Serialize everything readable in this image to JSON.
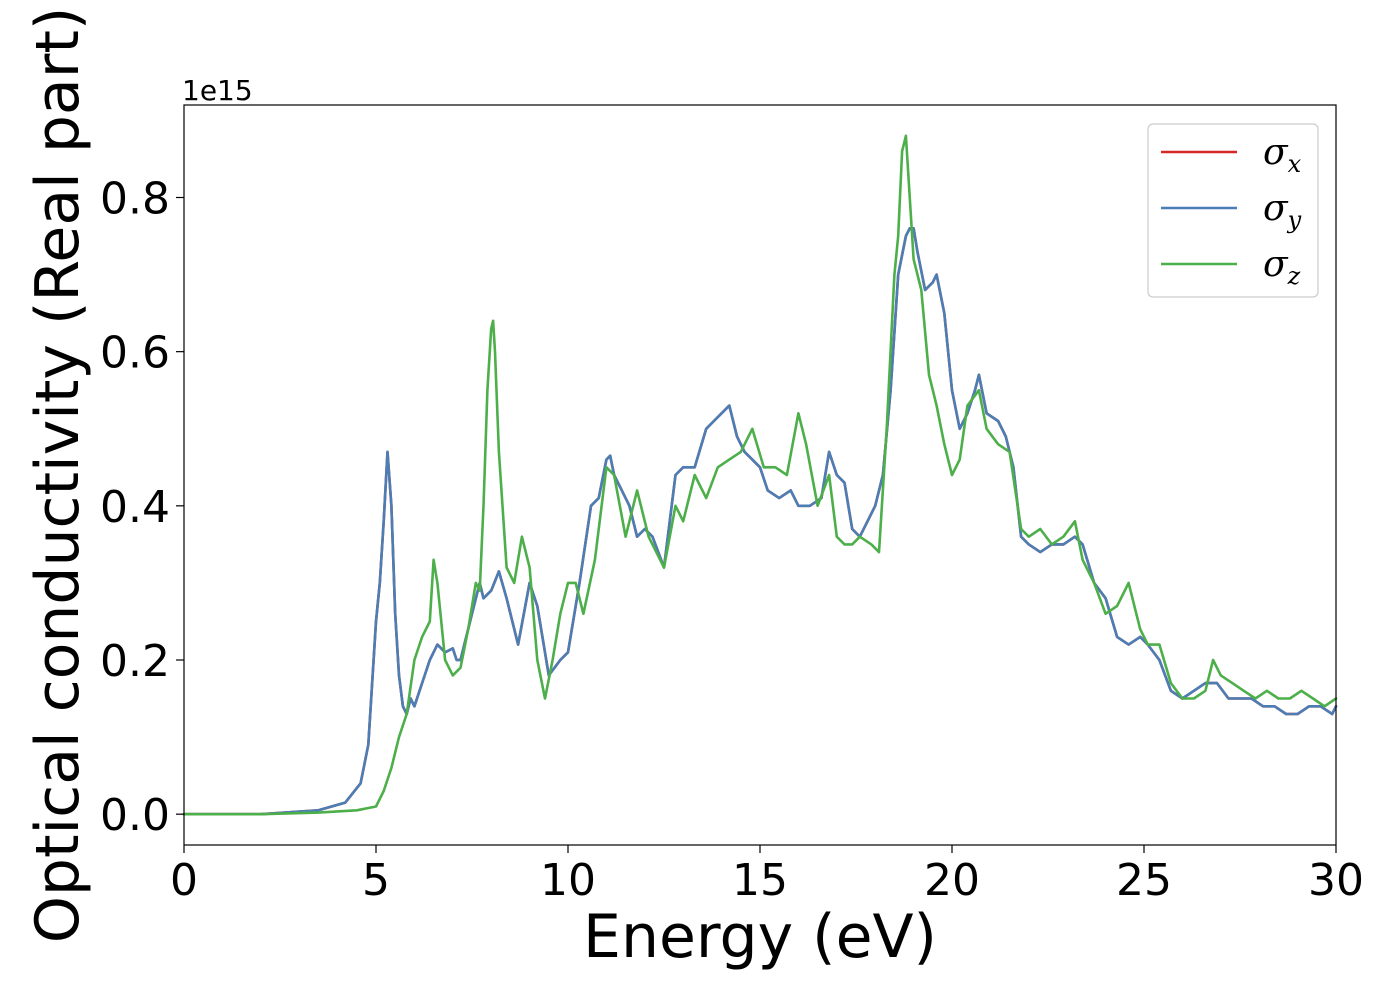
{
  "chart_data": {
    "type": "line",
    "title": "",
    "xlabel": "Energy (eV)",
    "ylabel": "Optical conductivity (Real part)",
    "y_offset_text": "1e15",
    "xlim": [
      0,
      30
    ],
    "ylim": [
      -0.04,
      0.92
    ],
    "x_ticks": [
      0,
      5,
      10,
      15,
      20,
      25,
      30
    ],
    "x_tick_labels": [
      "0",
      "5",
      "10",
      "15",
      "20",
      "25",
      "30"
    ],
    "y_ticks": [
      0.0,
      0.2,
      0.4,
      0.6,
      0.8
    ],
    "y_tick_labels": [
      "0.0",
      "0.2",
      "0.4",
      "0.6",
      "0.8"
    ],
    "grid": false,
    "legend_position": "top-right",
    "series": [
      {
        "name": "σx",
        "color": "#d62728",
        "x": [
          0,
          2,
          3.5,
          4.2,
          4.6,
          4.8,
          5.0,
          5.1,
          5.2,
          5.3,
          5.4,
          5.5,
          5.6,
          5.7,
          5.8,
          5.9,
          6.0,
          6.2,
          6.4,
          6.6,
          6.8,
          7.0,
          7.1,
          7.2,
          7.3,
          7.5,
          7.7,
          7.8,
          8.0,
          8.2,
          8.4,
          8.7,
          9.0,
          9.2,
          9.5,
          9.8,
          10.0,
          10.3,
          10.6,
          10.8,
          11.0,
          11.1,
          11.2,
          11.4,
          11.6,
          11.8,
          12.0,
          12.2,
          12.5,
          12.8,
          13.0,
          13.3,
          13.6,
          13.8,
          14.0,
          14.2,
          14.4,
          14.6,
          14.8,
          15.0,
          15.2,
          15.5,
          15.8,
          16.0,
          16.3,
          16.6,
          16.8,
          17.0,
          17.2,
          17.4,
          17.6,
          17.8,
          18.0,
          18.2,
          18.4,
          18.6,
          18.8,
          18.9,
          19.0,
          19.1,
          19.3,
          19.5,
          19.6,
          19.8,
          20.0,
          20.2,
          20.4,
          20.6,
          20.7,
          20.9,
          21.2,
          21.4,
          21.6,
          21.8,
          22.0,
          22.3,
          22.6,
          22.9,
          23.2,
          23.4,
          23.7,
          24.0,
          24.3,
          24.6,
          24.9,
          25.1,
          25.4,
          25.7,
          26.0,
          26.3,
          26.6,
          26.9,
          27.2,
          27.5,
          27.8,
          28.1,
          28.4,
          28.7,
          29.0,
          29.3,
          29.6,
          29.9,
          30.0
        ],
        "y": [
          0.0,
          0.0,
          0.005,
          0.015,
          0.04,
          0.09,
          0.25,
          0.3,
          0.38,
          0.47,
          0.4,
          0.26,
          0.18,
          0.14,
          0.13,
          0.15,
          0.14,
          0.17,
          0.2,
          0.22,
          0.21,
          0.215,
          0.2,
          0.2,
          0.22,
          0.26,
          0.3,
          0.28,
          0.29,
          0.315,
          0.28,
          0.22,
          0.3,
          0.27,
          0.18,
          0.2,
          0.21,
          0.3,
          0.4,
          0.41,
          0.46,
          0.465,
          0.44,
          0.42,
          0.4,
          0.36,
          0.37,
          0.36,
          0.32,
          0.44,
          0.45,
          0.45,
          0.5,
          0.51,
          0.52,
          0.53,
          0.49,
          0.47,
          0.46,
          0.45,
          0.42,
          0.41,
          0.42,
          0.4,
          0.4,
          0.41,
          0.47,
          0.44,
          0.43,
          0.37,
          0.36,
          0.38,
          0.4,
          0.44,
          0.55,
          0.7,
          0.75,
          0.76,
          0.76,
          0.73,
          0.68,
          0.69,
          0.7,
          0.65,
          0.55,
          0.5,
          0.52,
          0.55,
          0.57,
          0.52,
          0.51,
          0.49,
          0.45,
          0.36,
          0.35,
          0.34,
          0.35,
          0.35,
          0.36,
          0.35,
          0.3,
          0.28,
          0.23,
          0.22,
          0.23,
          0.22,
          0.2,
          0.16,
          0.15,
          0.16,
          0.17,
          0.17,
          0.15,
          0.15,
          0.15,
          0.14,
          0.14,
          0.13,
          0.13,
          0.14,
          0.14,
          0.13,
          0.14
        ]
      },
      {
        "name": "σy",
        "color": "#4a7eb4",
        "x": [
          0,
          2,
          3.5,
          4.2,
          4.6,
          4.8,
          5.0,
          5.1,
          5.2,
          5.3,
          5.4,
          5.5,
          5.6,
          5.7,
          5.8,
          5.9,
          6.0,
          6.2,
          6.4,
          6.6,
          6.8,
          7.0,
          7.1,
          7.2,
          7.3,
          7.5,
          7.7,
          7.8,
          8.0,
          8.2,
          8.4,
          8.7,
          9.0,
          9.2,
          9.5,
          9.8,
          10.0,
          10.3,
          10.6,
          10.8,
          11.0,
          11.1,
          11.2,
          11.4,
          11.6,
          11.8,
          12.0,
          12.2,
          12.5,
          12.8,
          13.0,
          13.3,
          13.6,
          13.8,
          14.0,
          14.2,
          14.4,
          14.6,
          14.8,
          15.0,
          15.2,
          15.5,
          15.8,
          16.0,
          16.3,
          16.6,
          16.8,
          17.0,
          17.2,
          17.4,
          17.6,
          17.8,
          18.0,
          18.2,
          18.4,
          18.6,
          18.8,
          18.9,
          19.0,
          19.1,
          19.3,
          19.5,
          19.6,
          19.8,
          20.0,
          20.2,
          20.4,
          20.6,
          20.7,
          20.9,
          21.2,
          21.4,
          21.6,
          21.8,
          22.0,
          22.3,
          22.6,
          22.9,
          23.2,
          23.4,
          23.7,
          24.0,
          24.3,
          24.6,
          24.9,
          25.1,
          25.4,
          25.7,
          26.0,
          26.3,
          26.6,
          26.9,
          27.2,
          27.5,
          27.8,
          28.1,
          28.4,
          28.7,
          29.0,
          29.3,
          29.6,
          29.9,
          30.0
        ],
        "y": [
          0.0,
          0.0,
          0.005,
          0.015,
          0.04,
          0.09,
          0.25,
          0.3,
          0.38,
          0.47,
          0.4,
          0.26,
          0.18,
          0.14,
          0.13,
          0.15,
          0.14,
          0.17,
          0.2,
          0.22,
          0.21,
          0.215,
          0.2,
          0.2,
          0.22,
          0.26,
          0.3,
          0.28,
          0.29,
          0.315,
          0.28,
          0.22,
          0.3,
          0.27,
          0.18,
          0.2,
          0.21,
          0.3,
          0.4,
          0.41,
          0.46,
          0.465,
          0.44,
          0.42,
          0.4,
          0.36,
          0.37,
          0.36,
          0.32,
          0.44,
          0.45,
          0.45,
          0.5,
          0.51,
          0.52,
          0.53,
          0.49,
          0.47,
          0.46,
          0.45,
          0.42,
          0.41,
          0.42,
          0.4,
          0.4,
          0.41,
          0.47,
          0.44,
          0.43,
          0.37,
          0.36,
          0.38,
          0.4,
          0.44,
          0.55,
          0.7,
          0.75,
          0.76,
          0.76,
          0.73,
          0.68,
          0.69,
          0.7,
          0.65,
          0.55,
          0.5,
          0.52,
          0.55,
          0.57,
          0.52,
          0.51,
          0.49,
          0.45,
          0.36,
          0.35,
          0.34,
          0.35,
          0.35,
          0.36,
          0.35,
          0.3,
          0.28,
          0.23,
          0.22,
          0.23,
          0.22,
          0.2,
          0.16,
          0.15,
          0.16,
          0.17,
          0.17,
          0.15,
          0.15,
          0.15,
          0.14,
          0.14,
          0.13,
          0.13,
          0.14,
          0.14,
          0.13,
          0.14
        ]
      },
      {
        "name": "σz",
        "color": "#4daf4a",
        "x": [
          0,
          2,
          3.5,
          4.5,
          5.0,
          5.2,
          5.4,
          5.6,
          5.8,
          6.0,
          6.2,
          6.4,
          6.5,
          6.6,
          6.8,
          7.0,
          7.2,
          7.4,
          7.6,
          7.7,
          7.8,
          7.9,
          8.0,
          8.05,
          8.1,
          8.2,
          8.4,
          8.6,
          8.8,
          9.0,
          9.2,
          9.4,
          9.6,
          9.8,
          10.0,
          10.2,
          10.4,
          10.7,
          11.0,
          11.2,
          11.5,
          11.8,
          12.1,
          12.5,
          12.8,
          13.0,
          13.3,
          13.6,
          13.9,
          14.2,
          14.5,
          14.8,
          15.1,
          15.4,
          15.7,
          16.0,
          16.2,
          16.5,
          16.8,
          17.0,
          17.2,
          17.4,
          17.6,
          17.9,
          18.1,
          18.3,
          18.5,
          18.6,
          18.7,
          18.8,
          19.0,
          19.2,
          19.4,
          19.6,
          19.8,
          20.0,
          20.2,
          20.4,
          20.7,
          20.9,
          21.2,
          21.5,
          21.8,
          22.0,
          22.3,
          22.6,
          22.9,
          23.2,
          23.4,
          23.7,
          24.0,
          24.3,
          24.6,
          24.9,
          25.1,
          25.4,
          25.7,
          26.0,
          26.3,
          26.6,
          26.8,
          27.0,
          27.3,
          27.6,
          27.9,
          28.2,
          28.5,
          28.8,
          29.1,
          29.4,
          29.7,
          30.0
        ],
        "y": [
          0.0,
          0.0,
          0.002,
          0.005,
          0.01,
          0.03,
          0.06,
          0.1,
          0.13,
          0.2,
          0.23,
          0.25,
          0.33,
          0.3,
          0.2,
          0.18,
          0.19,
          0.24,
          0.3,
          0.29,
          0.4,
          0.55,
          0.63,
          0.64,
          0.6,
          0.47,
          0.32,
          0.3,
          0.36,
          0.32,
          0.2,
          0.15,
          0.2,
          0.26,
          0.3,
          0.3,
          0.26,
          0.33,
          0.45,
          0.44,
          0.36,
          0.42,
          0.36,
          0.32,
          0.4,
          0.38,
          0.44,
          0.41,
          0.45,
          0.46,
          0.47,
          0.5,
          0.45,
          0.45,
          0.44,
          0.52,
          0.48,
          0.4,
          0.44,
          0.36,
          0.35,
          0.35,
          0.36,
          0.35,
          0.34,
          0.5,
          0.7,
          0.75,
          0.86,
          0.88,
          0.72,
          0.68,
          0.57,
          0.53,
          0.48,
          0.44,
          0.46,
          0.53,
          0.55,
          0.5,
          0.48,
          0.47,
          0.37,
          0.36,
          0.37,
          0.35,
          0.36,
          0.38,
          0.33,
          0.3,
          0.26,
          0.27,
          0.3,
          0.24,
          0.22,
          0.22,
          0.17,
          0.15,
          0.15,
          0.16,
          0.2,
          0.18,
          0.17,
          0.16,
          0.15,
          0.16,
          0.15,
          0.15,
          0.16,
          0.15,
          0.14,
          0.15
        ]
      }
    ]
  }
}
